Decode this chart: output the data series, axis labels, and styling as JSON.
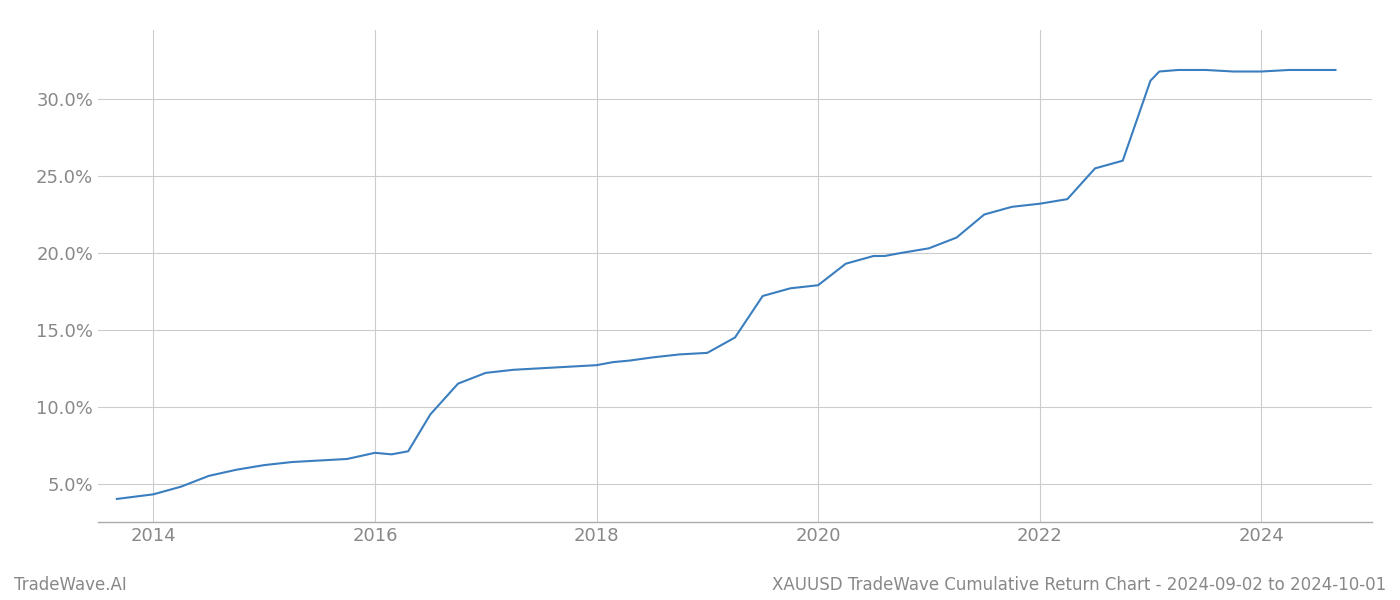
{
  "title": "XAUUSD TradeWave Cumulative Return Chart - 2024-09-02 to 2024-10-01",
  "watermark": "TradeWave.AI",
  "line_color": "#3a7ebf",
  "background_color": "#ffffff",
  "grid_color": "#cccccc",
  "x_years": [
    2013.67,
    2014.0,
    2014.25,
    2014.5,
    2014.75,
    2015.0,
    2015.25,
    2015.5,
    2015.75,
    2016.0,
    2016.15,
    2016.3,
    2016.5,
    2016.75,
    2017.0,
    2017.25,
    2017.5,
    2017.75,
    2018.0,
    2018.15,
    2018.3,
    2018.5,
    2018.75,
    2019.0,
    2019.25,
    2019.5,
    2019.75,
    2020.0,
    2020.25,
    2020.5,
    2020.6,
    2020.75,
    2021.0,
    2021.25,
    2021.5,
    2021.75,
    2022.0,
    2022.25,
    2022.5,
    2022.75,
    2023.0,
    2023.08,
    2023.25,
    2023.5,
    2023.75,
    2024.0,
    2024.25,
    2024.67
  ],
  "y_values": [
    4.0,
    4.3,
    4.8,
    5.5,
    5.9,
    6.2,
    6.4,
    6.5,
    6.6,
    7.0,
    6.9,
    7.1,
    9.5,
    11.5,
    12.2,
    12.4,
    12.5,
    12.6,
    12.7,
    12.9,
    13.0,
    13.2,
    13.4,
    13.5,
    14.5,
    17.2,
    17.7,
    17.9,
    19.3,
    19.8,
    19.8,
    20.0,
    20.3,
    21.0,
    22.5,
    23.0,
    23.2,
    23.5,
    25.5,
    26.0,
    31.2,
    31.8,
    31.9,
    31.9,
    31.8,
    31.8,
    31.9,
    31.9
  ],
  "xlim": [
    2013.5,
    2025.0
  ],
  "ylim": [
    2.5,
    34.5
  ],
  "xtick_years": [
    2014,
    2016,
    2018,
    2020,
    2022,
    2024
  ],
  "ytick_values": [
    5.0,
    10.0,
    15.0,
    20.0,
    25.0,
    30.0
  ],
  "ytick_labels": [
    "5.0%",
    "10.0%",
    "15.0%",
    "20.0%",
    "25.0%",
    "30.0%"
  ],
  "line_width": 1.5,
  "tick_label_color": "#888888",
  "tick_label_fontsize": 13,
  "title_fontsize": 12,
  "watermark_fontsize": 12
}
